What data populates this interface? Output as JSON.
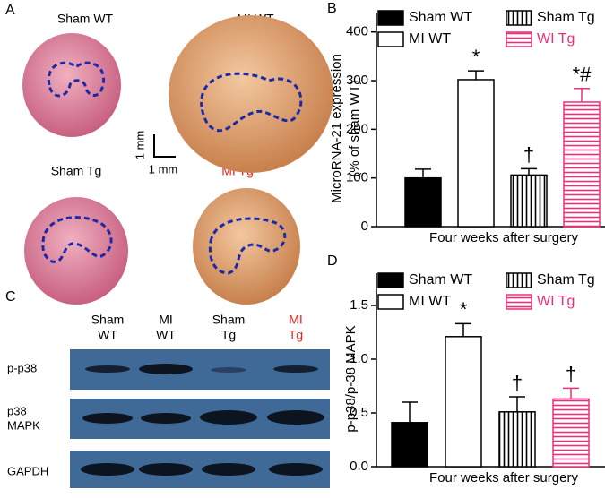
{
  "panel_a": {
    "letter": "A",
    "labels": [
      "Sham WT",
      "MI WT",
      "Sham Tg",
      "MI Tg"
    ],
    "scale": [
      "1 mm",
      "1 mm"
    ]
  },
  "panel_c": {
    "letter": "C",
    "lanes": [
      [
        "Sham",
        "WT"
      ],
      [
        "MI",
        "WT"
      ],
      [
        "Sham",
        "Tg"
      ],
      [
        "MI",
        "Tg"
      ]
    ],
    "rows": [
      [
        "p-p38"
      ],
      [
        "p38",
        "MAPK"
      ],
      [
        "GAPDH"
      ]
    ]
  },
  "chart_data": [
    {
      "type": "bar",
      "label": "B",
      "y_label": [
        "MicroRNA-21 expression",
        "(% of sham WT)"
      ],
      "categories": [
        "Four weeks after surgery"
      ],
      "ylim": [
        0,
        440
      ],
      "yticks": [
        0,
        100,
        200,
        300,
        400
      ],
      "series": [
        {
          "name": "Sham WT",
          "color": "#000000",
          "pattern": "solid",
          "values": [
            100
          ],
          "errors": [
            18
          ]
        },
        {
          "name": "MI WT",
          "color": "#000000",
          "pattern": "open",
          "values": [
            302
          ],
          "errors": [
            18
          ],
          "annotations": [
            "*"
          ]
        },
        {
          "name": "Sham Tg",
          "color": "#000000",
          "pattern": "vertical-stripes",
          "values": [
            106
          ],
          "errors": [
            13
          ],
          "annotations": [
            "†"
          ]
        },
        {
          "name": "WI Tg",
          "color": "#e8317a",
          "pattern": "horizontal-stripes",
          "values": [
            256
          ],
          "errors": [
            28
          ],
          "annotations": [
            "*#"
          ]
        }
      ]
    },
    {
      "type": "bar",
      "label": "D",
      "y_label": [
        "p-p38/p-38 MAPK"
      ],
      "categories": [
        "Four weeks after surgery"
      ],
      "ylim": [
        0,
        1.8
      ],
      "yticks": [
        {
          "value": 0,
          "label": "0.0"
        },
        0.5,
        {
          "value": 1,
          "label": "1.0"
        },
        1.5
      ],
      "series": [
        {
          "name": "Sham WT",
          "color": "#000000",
          "pattern": "solid",
          "values": [
            0.41
          ],
          "errors": [
            0.19
          ]
        },
        {
          "name": "MI WT",
          "color": "#000000",
          "pattern": "open",
          "values": [
            1.21
          ],
          "errors": [
            0.12
          ],
          "annotations": [
            "*"
          ]
        },
        {
          "name": "Sham Tg",
          "color": "#000000",
          "pattern": "vertical-stripes",
          "values": [
            0.51
          ],
          "errors": [
            0.14
          ],
          "annotations": [
            "†"
          ]
        },
        {
          "name": "WI Tg",
          "color": "#e8317a",
          "pattern": "horizontal-stripes",
          "values": [
            0.63
          ],
          "errors": [
            0.1
          ],
          "annotations": [
            "†"
          ]
        }
      ]
    }
  ]
}
